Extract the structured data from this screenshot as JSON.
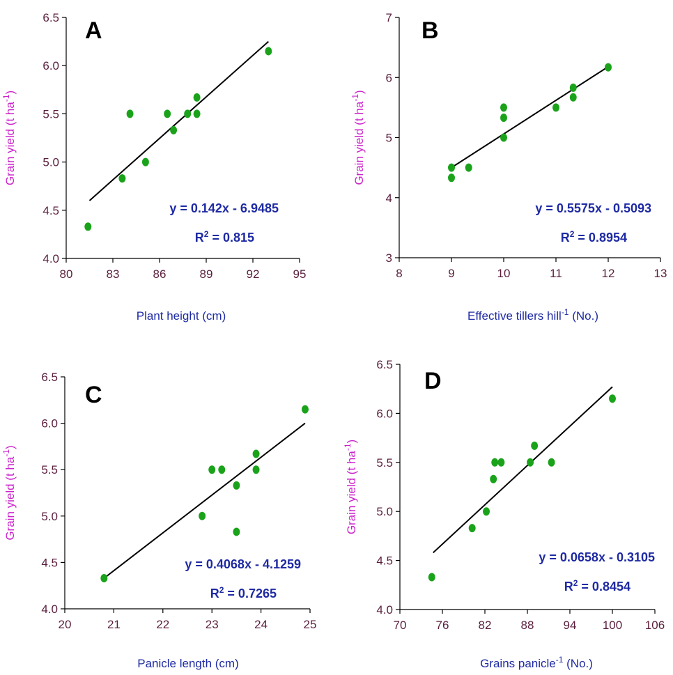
{
  "chart_data": [
    {
      "type": "scatter",
      "panel": "A",
      "xlabel_main": "Plant height (cm)",
      "xlabel_sup": "",
      "xlabel_tail": "",
      "ylabel_main": "Grain yield (t ha",
      "ylabel_sup": "-1",
      "ylabel_tail": ")",
      "xlim": [
        80,
        95
      ],
      "ylim": [
        4.0,
        6.5
      ],
      "xticks": [
        80,
        83,
        86,
        89,
        92,
        95
      ],
      "yticks": [
        4.0,
        4.5,
        5.0,
        5.5,
        6.0,
        6.5
      ],
      "xtick_labels": [
        "80",
        "83",
        "86",
        "89",
        "92",
        "95"
      ],
      "ytick_labels": [
        "4.0",
        "4.5",
        "5.0",
        "5.5",
        "6.0",
        "6.5"
      ],
      "points": [
        [
          81.4,
          4.33
        ],
        [
          83.6,
          4.83
        ],
        [
          84.1,
          5.5
        ],
        [
          85.1,
          5.0
        ],
        [
          86.5,
          5.5
        ],
        [
          86.9,
          5.33
        ],
        [
          87.8,
          5.5
        ],
        [
          88.4,
          5.67
        ],
        [
          88.4,
          5.5
        ],
        [
          93.0,
          6.15
        ]
      ],
      "trendline": {
        "x": [
          81.5,
          93.0
        ],
        "y": [
          4.6,
          6.25
        ]
      },
      "equation": "y = 0.142x - 6.9485",
      "r2_prefix": "R",
      "r2_sup": "2",
      "r2_value": " = 0.815",
      "grid": false
    },
    {
      "type": "scatter",
      "panel": "B",
      "xlabel_main": "Effective tillers hill",
      "xlabel_sup": "-1",
      "xlabel_tail": " (No.)",
      "ylabel_main": "Grain yield (t ha",
      "ylabel_sup": "-1",
      "ylabel_tail": ")",
      "xlim": [
        8,
        13
      ],
      "ylim": [
        3,
        7
      ],
      "xticks": [
        8,
        9,
        10,
        11,
        12,
        13
      ],
      "yticks": [
        3,
        4,
        5,
        6,
        7
      ],
      "xtick_labels": [
        "8",
        "9",
        "10",
        "11",
        "12",
        "13"
      ],
      "ytick_labels": [
        "3",
        "4",
        "5",
        "6",
        "7"
      ],
      "points": [
        [
          9.0,
          4.5
        ],
        [
          9.0,
          4.33
        ],
        [
          9.33,
          4.5
        ],
        [
          10.0,
          5.5
        ],
        [
          10.0,
          5.33
        ],
        [
          10.0,
          5.0
        ],
        [
          11.0,
          5.5
        ],
        [
          11.33,
          5.83
        ],
        [
          11.33,
          5.67
        ],
        [
          12.0,
          6.17
        ]
      ],
      "trendline": {
        "x": [
          9.0,
          12.0
        ],
        "y": [
          4.5,
          6.18
        ]
      },
      "equation": "y = 0.5575x - 0.5093",
      "r2_prefix": "R",
      "r2_sup": "2",
      "r2_value": " = 0.8954",
      "grid": false
    },
    {
      "type": "scatter",
      "panel": "C",
      "xlabel_main": "Panicle length (cm)",
      "xlabel_sup": "",
      "xlabel_tail": "",
      "ylabel_main": "Grain yield (t ha",
      "ylabel_sup": "-1",
      "ylabel_tail": ")",
      "xlim": [
        20,
        25
      ],
      "ylim": [
        4.0,
        6.5
      ],
      "xticks": [
        20,
        21,
        22,
        23,
        24,
        25
      ],
      "yticks": [
        4.0,
        4.5,
        5.0,
        5.5,
        6.0,
        6.5
      ],
      "xtick_labels": [
        "20",
        "21",
        "22",
        "23",
        "24",
        "25"
      ],
      "ytick_labels": [
        "4.0",
        "4.5",
        "5.0",
        "5.5",
        "6.0",
        "6.5"
      ],
      "points": [
        [
          20.8,
          4.33
        ],
        [
          22.8,
          5.0
        ],
        [
          23.0,
          5.5
        ],
        [
          23.2,
          5.5
        ],
        [
          23.5,
          5.33
        ],
        [
          23.5,
          4.83
        ],
        [
          23.9,
          5.67
        ],
        [
          23.9,
          5.5
        ],
        [
          24.9,
          6.15
        ]
      ],
      "trendline": {
        "x": [
          20.8,
          24.9
        ],
        "y": [
          4.33,
          6.0
        ]
      },
      "equation": "y = 0.4068x - 4.1259",
      "r2_prefix": "R",
      "r2_sup": "2",
      "r2_value": " = 0.7265",
      "grid": false
    },
    {
      "type": "scatter",
      "panel": "D",
      "xlabel_main": "Grains panicle",
      "xlabel_sup": "-1",
      "xlabel_tail": " (No.)",
      "ylabel_main": "Grain yield (t ha",
      "ylabel_sup": "-1",
      "ylabel_tail": ")",
      "xlim": [
        70,
        106
      ],
      "ylim": [
        4.0,
        6.5
      ],
      "xticks": [
        70,
        76,
        82,
        88,
        94,
        100,
        106
      ],
      "yticks": [
        4.0,
        4.5,
        5.0,
        5.5,
        6.0,
        6.5
      ],
      "xtick_labels": [
        "70",
        "76",
        "82",
        "88",
        "94",
        "100",
        "106"
      ],
      "ytick_labels": [
        "4.0",
        "4.5",
        "5.0",
        "5.5",
        "6.0",
        "6.5"
      ],
      "points": [
        [
          74.5,
          4.33
        ],
        [
          80.2,
          4.83
        ],
        [
          82.2,
          5.0
        ],
        [
          83.2,
          5.33
        ],
        [
          83.4,
          5.5
        ],
        [
          84.3,
          5.5
        ],
        [
          88.4,
          5.5
        ],
        [
          89.0,
          5.67
        ],
        [
          91.4,
          5.5
        ],
        [
          100.0,
          6.15
        ]
      ],
      "trendline": {
        "x": [
          74.7,
          100.0
        ],
        "y": [
          4.58,
          6.27
        ]
      },
      "equation": "y = 0.0658x - 0.3105",
      "r2_prefix": "R",
      "r2_sup": "2",
      "r2_value": " = 0.8454",
      "grid": false
    }
  ]
}
